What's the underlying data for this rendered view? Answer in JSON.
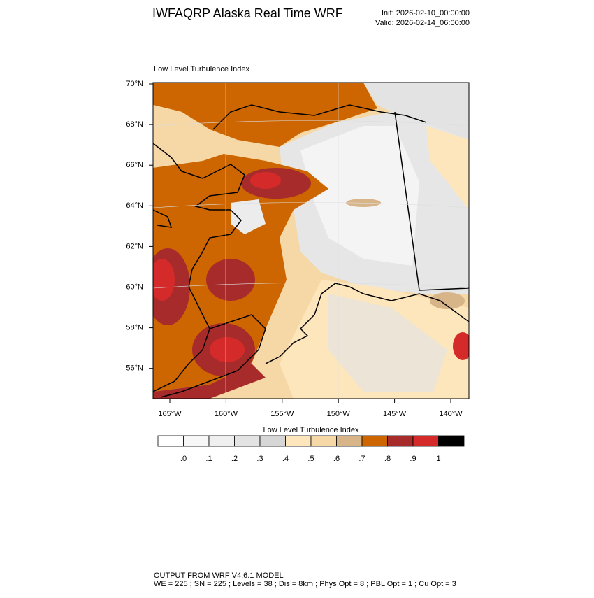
{
  "header": {
    "title": "IWFAQRP Alaska Real Time WRF",
    "init": "Init: 2026-02-10_00:00:00",
    "valid": "Valid: 2026-02-14_06:00:00"
  },
  "map": {
    "subtitle": "Low Level Turbulence Index",
    "lat_labels": [
      "70°N",
      "68°N",
      "66°N",
      "64°N",
      "62°N",
      "60°N",
      "58°N",
      "56°N"
    ],
    "lon_labels": [
      "165°W",
      "160°W",
      "155°W",
      "150°W",
      "145°W",
      "140°W"
    ]
  },
  "colorbar": {
    "title": "Low Level Turbulence Index",
    "labels": [
      ".0",
      ".1",
      ".2",
      ".3",
      ".4",
      ".5",
      ".6",
      ".7",
      ".8",
      ".9",
      "1"
    ],
    "colors": [
      "#ffffff",
      "#f7f7f7",
      "#efefef",
      "#e3e3e3",
      "#d6d6d6",
      "#fde6bc",
      "#f5d8a6",
      "#d8b489",
      "#cd6500",
      "#a82b2b",
      "#d52a2a",
      "#000000"
    ]
  },
  "footer": {
    "line1": "OUTPUT FROM WRF V4.6.1 MODEL",
    "line2": "WE = 225 ; SN = 225 ; Levels = 38 ; Dis = 8km ; Phys Opt = 8 ; PBL Opt = 1 ; Cu Opt = 3"
  }
}
